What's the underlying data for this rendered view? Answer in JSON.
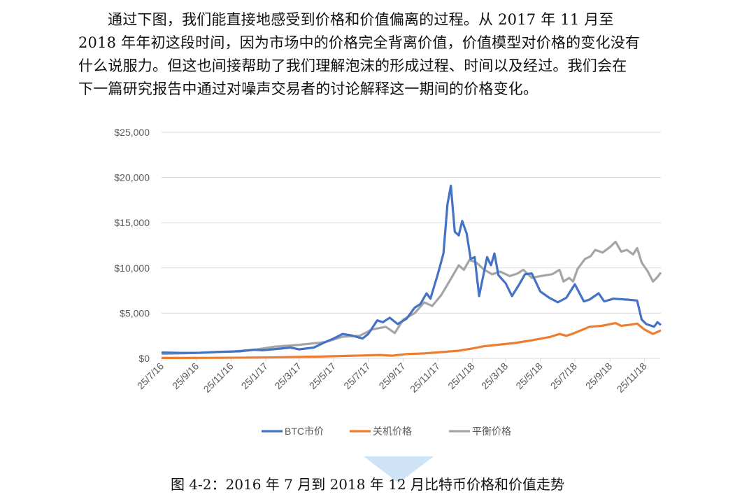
{
  "paragraph": {
    "lines": [
      "通过下图，我们能直接地感受到价格和价值偏离的过程。从 2017 年 11 月至",
      "2018 年年初这段时间，因为市场中的价格完全背离价值，价值模型对价格的变化没有",
      "什么说服力。但这也间接帮助了我们理解泡沫的形成过程、时间以及经过。我们会在",
      "下一篇研究报告中通过对噪声交易者的讨论解释这一期间的价格变化。"
    ]
  },
  "caption": "图 4-2：2016 年 7 月到 2018 年 12 月比特币价格和价值走势",
  "chart_data": {
    "type": "line",
    "title": "",
    "xlabel": "",
    "ylabel": "",
    "ylim": [
      0,
      25000
    ],
    "yticks": [
      "$0",
      "$5,000",
      "$10,000",
      "$15,000",
      "$20,000",
      "$25,000"
    ],
    "ytick_values": [
      0,
      5000,
      10000,
      15000,
      20000,
      25000
    ],
    "xlim": [
      "2016-07-25",
      "2018-12-24"
    ],
    "xticks": [
      "25/7/16",
      "25/9/16",
      "25/11/16",
      "25/1/17",
      "25/3/17",
      "25/5/17",
      "25/7/17",
      "25/9/17",
      "25/11/17",
      "25/1/18",
      "25/3/18",
      "25/5/18",
      "25/7/18",
      "25/9/18",
      "25/11/18"
    ],
    "xtick_dates": [
      "2016-07-25",
      "2016-09-25",
      "2016-11-25",
      "2017-01-25",
      "2017-03-25",
      "2017-05-25",
      "2017-07-25",
      "2017-09-25",
      "2017-11-25",
      "2018-01-25",
      "2018-03-25",
      "2018-05-25",
      "2018-07-25",
      "2018-09-25",
      "2018-11-25"
    ],
    "grid": "horizontal",
    "legend_position": "bottom",
    "series": [
      {
        "name": "BTC市价",
        "color": "#4472C4",
        "points": [
          [
            "2016-07-25",
            650
          ],
          [
            "2016-09-01",
            600
          ],
          [
            "2016-10-01",
            620
          ],
          [
            "2016-11-01",
            720
          ],
          [
            "2016-12-10",
            780
          ],
          [
            "2017-01-05",
            950
          ],
          [
            "2017-01-20",
            900
          ],
          [
            "2017-02-15",
            1050
          ],
          [
            "2017-03-10",
            1200
          ],
          [
            "2017-03-25",
            1000
          ],
          [
            "2017-04-20",
            1200
          ],
          [
            "2017-05-10",
            1800
          ],
          [
            "2017-05-25",
            2200
          ],
          [
            "2017-06-10",
            2700
          ],
          [
            "2017-06-25",
            2550
          ],
          [
            "2017-07-15",
            2200
          ],
          [
            "2017-07-25",
            2700
          ],
          [
            "2017-08-10",
            4200
          ],
          [
            "2017-08-20",
            4000
          ],
          [
            "2017-09-01",
            4500
          ],
          [
            "2017-09-15",
            3800
          ],
          [
            "2017-10-01",
            4400
          ],
          [
            "2017-10-15",
            5600
          ],
          [
            "2017-10-25",
            6000
          ],
          [
            "2017-11-05",
            7200
          ],
          [
            "2017-11-12",
            6600
          ],
          [
            "2017-11-25",
            9300
          ],
          [
            "2017-12-05",
            11600
          ],
          [
            "2017-12-12",
            17000
          ],
          [
            "2017-12-18",
            19100
          ],
          [
            "2017-12-25",
            14000
          ],
          [
            "2018-01-01",
            13600
          ],
          [
            "2018-01-07",
            15200
          ],
          [
            "2018-01-15",
            13800
          ],
          [
            "2018-01-22",
            11000
          ],
          [
            "2018-01-29",
            11200
          ],
          [
            "2018-02-06",
            6900
          ],
          [
            "2018-02-20",
            11200
          ],
          [
            "2018-02-27",
            10300
          ],
          [
            "2018-03-05",
            11600
          ],
          [
            "2018-03-12",
            9200
          ],
          [
            "2018-03-25",
            8300
          ],
          [
            "2018-04-05",
            6900
          ],
          [
            "2018-04-18",
            8200
          ],
          [
            "2018-04-28",
            9300
          ],
          [
            "2018-05-10",
            9400
          ],
          [
            "2018-05-25",
            7400
          ],
          [
            "2018-06-10",
            6700
          ],
          [
            "2018-06-25",
            6200
          ],
          [
            "2018-07-10",
            6700
          ],
          [
            "2018-07-25",
            8200
          ],
          [
            "2018-08-10",
            6300
          ],
          [
            "2018-08-20",
            6500
          ],
          [
            "2018-09-05",
            7200
          ],
          [
            "2018-09-15",
            6300
          ],
          [
            "2018-10-01",
            6600
          ],
          [
            "2018-10-25",
            6500
          ],
          [
            "2018-11-12",
            6400
          ],
          [
            "2018-11-20",
            4300
          ],
          [
            "2018-11-28",
            3800
          ],
          [
            "2018-12-12",
            3500
          ],
          [
            "2018-12-18",
            4000
          ],
          [
            "2018-12-24",
            3700
          ]
        ]
      },
      {
        "name": "关机价格",
        "color": "#ED7D31",
        "points": [
          [
            "2016-07-25",
            50
          ],
          [
            "2016-11-01",
            60
          ],
          [
            "2017-01-25",
            100
          ],
          [
            "2017-05-01",
            200
          ],
          [
            "2017-07-01",
            300
          ],
          [
            "2017-08-15",
            380
          ],
          [
            "2017-09-05",
            300
          ],
          [
            "2017-10-01",
            480
          ],
          [
            "2017-11-01",
            550
          ],
          [
            "2017-12-01",
            700
          ],
          [
            "2018-01-01",
            850
          ],
          [
            "2018-01-25",
            1100
          ],
          [
            "2018-02-15",
            1350
          ],
          [
            "2018-03-10",
            1500
          ],
          [
            "2018-04-10",
            1700
          ],
          [
            "2018-05-10",
            2000
          ],
          [
            "2018-06-10",
            2350
          ],
          [
            "2018-06-28",
            2700
          ],
          [
            "2018-07-10",
            2500
          ],
          [
            "2018-07-20",
            2700
          ],
          [
            "2018-08-05",
            3100
          ],
          [
            "2018-08-20",
            3500
          ],
          [
            "2018-09-10",
            3600
          ],
          [
            "2018-10-05",
            3900
          ],
          [
            "2018-10-15",
            3600
          ],
          [
            "2018-10-28",
            3700
          ],
          [
            "2018-11-12",
            3850
          ],
          [
            "2018-11-25",
            3200
          ],
          [
            "2018-12-10",
            2700
          ],
          [
            "2018-12-24",
            3100
          ]
        ]
      },
      {
        "name": "平衡价格",
        "color": "#A5A5A5",
        "points": [
          [
            "2016-07-25",
            500
          ],
          [
            "2016-09-25",
            600
          ],
          [
            "2016-11-25",
            750
          ],
          [
            "2017-01-10",
            1000
          ],
          [
            "2017-02-10",
            1300
          ],
          [
            "2017-03-25",
            1500
          ],
          [
            "2017-05-10",
            1800
          ],
          [
            "2017-06-10",
            2400
          ],
          [
            "2017-07-10",
            2500
          ],
          [
            "2017-08-01",
            3200
          ],
          [
            "2017-08-25",
            3500
          ],
          [
            "2017-09-10",
            2800
          ],
          [
            "2017-09-25",
            4300
          ],
          [
            "2017-10-15",
            5000
          ],
          [
            "2017-11-01",
            6200
          ],
          [
            "2017-11-15",
            5800
          ],
          [
            "2017-12-01",
            7000
          ],
          [
            "2017-12-20",
            9000
          ],
          [
            "2018-01-01",
            10300
          ],
          [
            "2018-01-10",
            9800
          ],
          [
            "2018-01-20",
            10900
          ],
          [
            "2018-02-01",
            10600
          ],
          [
            "2018-02-15",
            9800
          ],
          [
            "2018-03-01",
            9300
          ],
          [
            "2018-03-15",
            9600
          ],
          [
            "2018-04-01",
            9100
          ],
          [
            "2018-04-15",
            9400
          ],
          [
            "2018-04-25",
            9800
          ],
          [
            "2018-05-10",
            8900
          ],
          [
            "2018-05-25",
            9100
          ],
          [
            "2018-06-15",
            9300
          ],
          [
            "2018-06-28",
            9800
          ],
          [
            "2018-07-05",
            8500
          ],
          [
            "2018-07-15",
            8900
          ],
          [
            "2018-07-22",
            8500
          ],
          [
            "2018-07-30",
            9900
          ],
          [
            "2018-08-12",
            11000
          ],
          [
            "2018-08-22",
            11300
          ],
          [
            "2018-08-30",
            12000
          ],
          [
            "2018-09-12",
            11700
          ],
          [
            "2018-09-25",
            12300
          ],
          [
            "2018-10-05",
            12900
          ],
          [
            "2018-10-15",
            11800
          ],
          [
            "2018-10-25",
            12000
          ],
          [
            "2018-11-05",
            11500
          ],
          [
            "2018-11-12",
            12200
          ],
          [
            "2018-11-20",
            10600
          ],
          [
            "2018-12-01",
            9600
          ],
          [
            "2018-12-10",
            8500
          ],
          [
            "2018-12-18",
            9000
          ],
          [
            "2018-12-24",
            9500
          ]
        ]
      }
    ]
  }
}
